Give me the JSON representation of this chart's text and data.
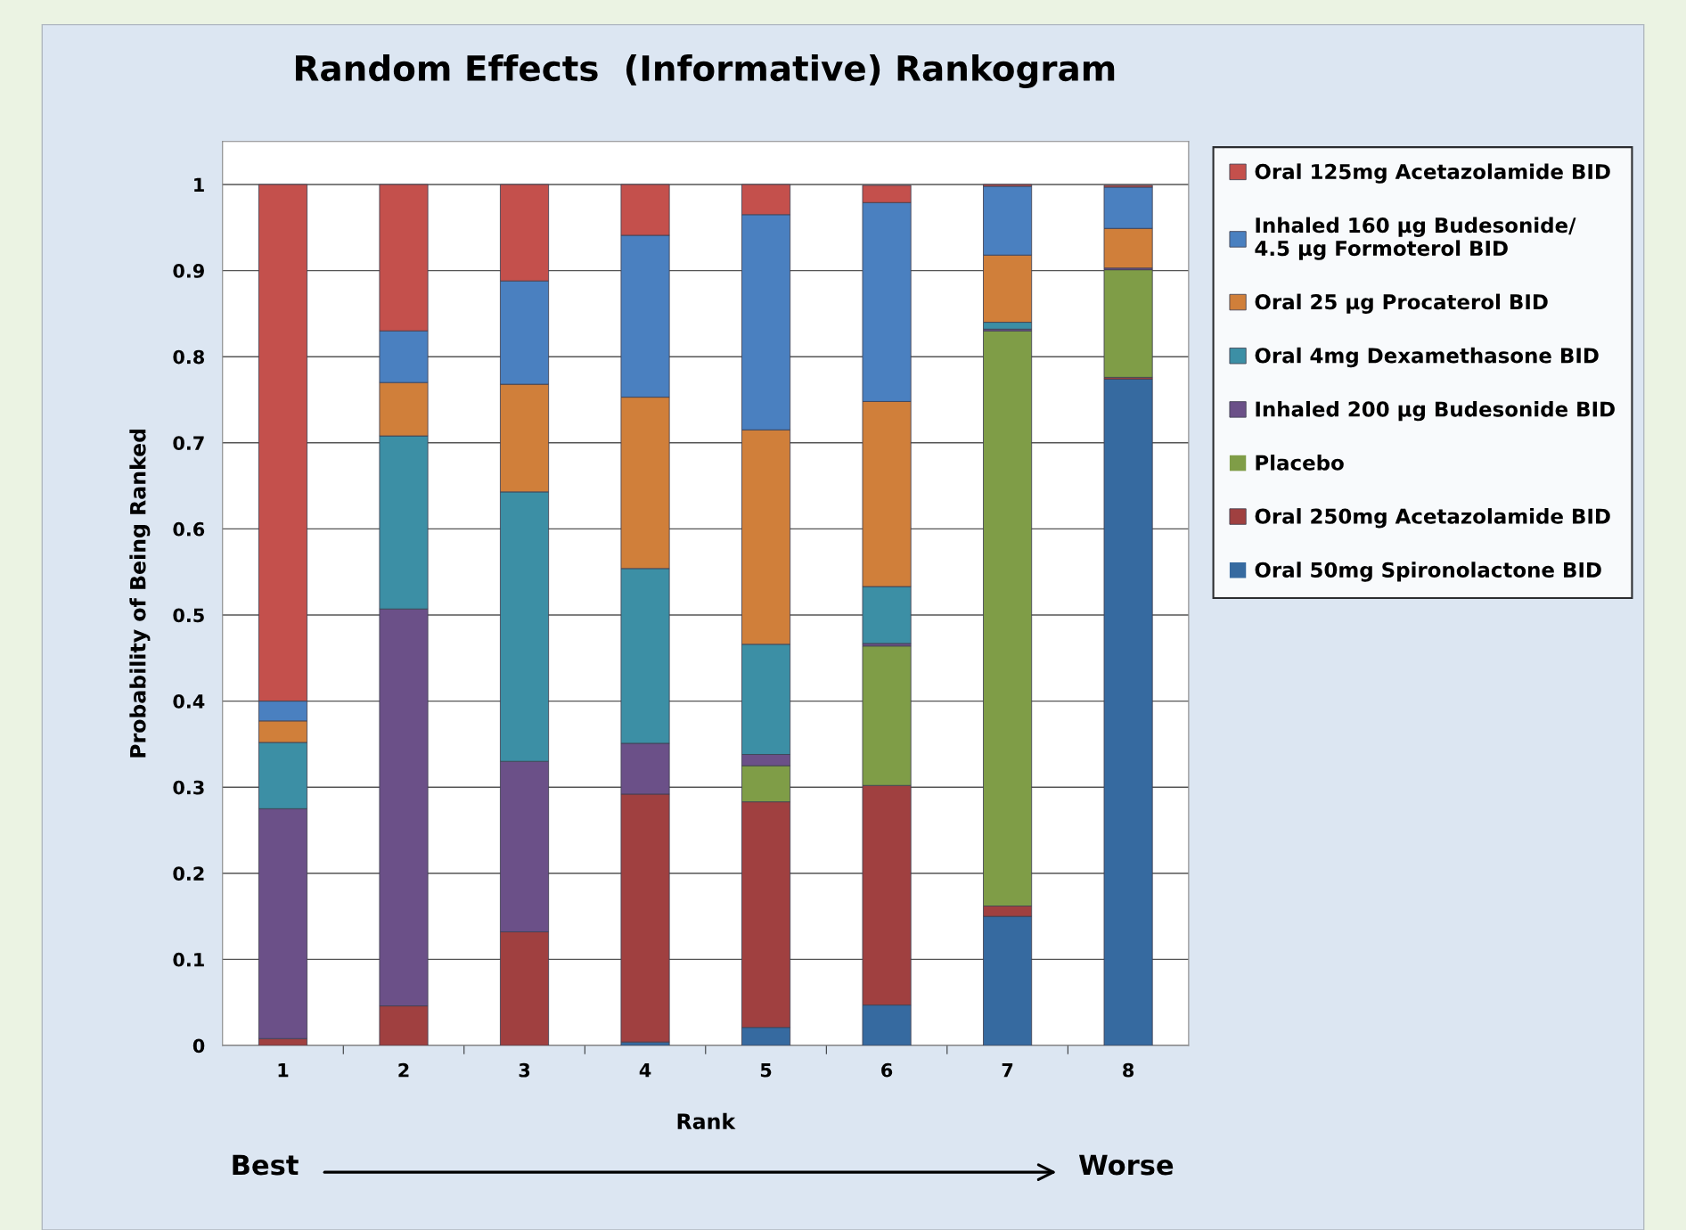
{
  "chart_data": {
    "type": "bar",
    "stacked": true,
    "title": "Random Effects  (Informative) Rankogram",
    "xlabel": "Rank",
    "ylabel": "Probability of Being Ranked",
    "categories": [
      "1",
      "2",
      "3",
      "4",
      "5",
      "6",
      "7",
      "8"
    ],
    "series": [
      {
        "name": "Oral 50mg Spironolactone BID",
        "color": "#366aa0",
        "values": [
          0,
          0,
          0,
          0.004,
          0.021,
          0.047,
          0.15,
          0.774
        ]
      },
      {
        "name": "Oral 250mg Acetazolamide BID",
        "color": "#a04040",
        "values": [
          0.008,
          0.046,
          0.132,
          0.288,
          0.262,
          0.255,
          0.012,
          0.002
        ]
      },
      {
        "name": "Placebo",
        "color": "#7f9d47",
        "values": [
          0,
          0,
          0,
          0,
          0.042,
          0.162,
          0.668,
          0.125
        ]
      },
      {
        "name": "Inhaled 200 μg Budesonide BID",
        "color": "#6b5088",
        "values": [
          0.267,
          0.461,
          0.198,
          0.059,
          0.013,
          0.003,
          0.002,
          0.002
        ]
      },
      {
        "name": "Oral 4mg Dexamethasone BID",
        "color": "#3c8fa5",
        "values": [
          0.077,
          0.201,
          0.313,
          0.203,
          0.128,
          0.066,
          0.008,
          0
        ]
      },
      {
        "name": "Oral 25 μg Procaterol BID",
        "color": "#d07f3a",
        "values": [
          0.025,
          0.062,
          0.125,
          0.199,
          0.249,
          0.215,
          0.078,
          0.046
        ]
      },
      {
        "name": "Inhaled 160 μg Budesonide/\n4.5 μg Formoterol BID",
        "color": "#4a80c0",
        "values": [
          0.023,
          0.06,
          0.12,
          0.188,
          0.25,
          0.231,
          0.08,
          0.048
        ]
      },
      {
        "name": "Oral 125mg Acetazolamide BID",
        "color": "#c4504c",
        "values": [
          0.6,
          0.17,
          0.112,
          0.059,
          0.035,
          0.02,
          0.002,
          0.002
        ]
      }
    ],
    "ylim": [
      0,
      1.05
    ],
    "yticks": [
      0,
      0.1,
      0.2,
      0.3,
      0.4,
      0.5,
      0.6,
      0.7,
      0.8,
      0.9,
      1
    ],
    "grid": "y",
    "legend": "right",
    "annotations": [
      "Best",
      "Worse"
    ]
  }
}
